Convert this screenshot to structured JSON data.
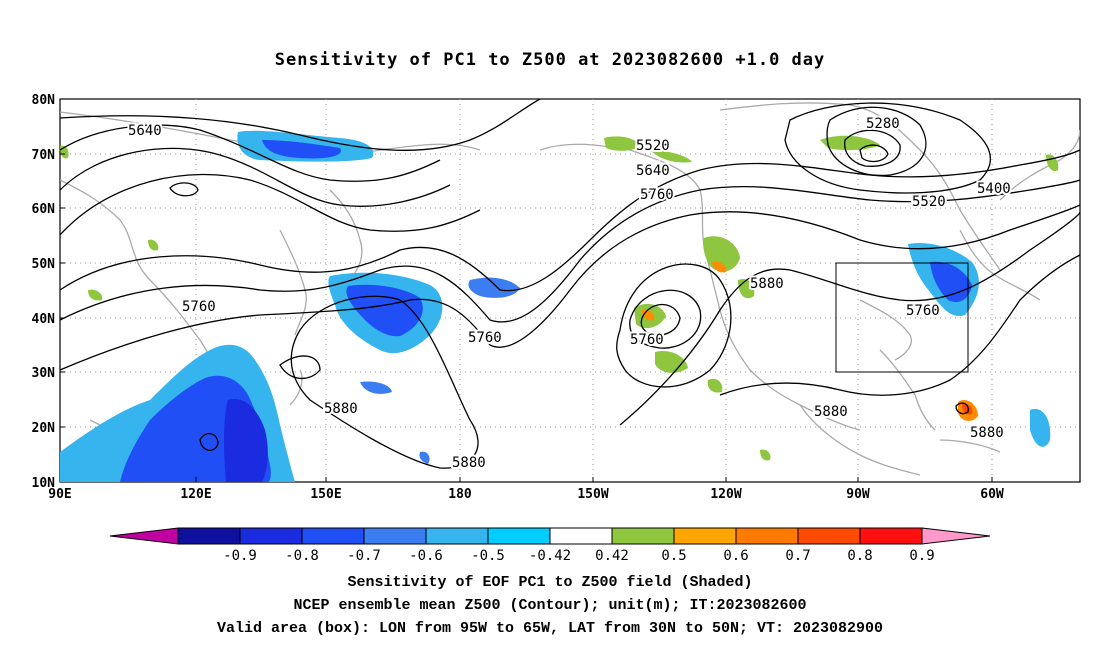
{
  "title": "Sensitivity of PC1 to Z500 at 2023082600 +1.0 day",
  "lat_labels": [
    "80N",
    "70N",
    "60N",
    "50N",
    "40N",
    "30N",
    "20N",
    "10N"
  ],
  "lon_labels": [
    "90E",
    "120E",
    "150E",
    "180",
    "150W",
    "120W",
    "90W",
    "60W"
  ],
  "contour_labels": [
    "5640",
    "5520",
    "5640",
    "5760",
    "5280",
    "5400",
    "5520",
    "5880",
    "5760",
    "5760",
    "5760",
    "5760",
    "5880",
    "5880",
    "5880",
    "5880"
  ],
  "colorbar": {
    "labels": [
      "-0.9",
      "-0.8",
      "-0.7",
      "-0.6",
      "-0.5",
      "-0.42",
      "0.42",
      "0.5",
      "0.6",
      "0.7",
      "0.8",
      "0.9"
    ],
    "colors": [
      "#c000a0",
      "#1010a0",
      "#1a2be0",
      "#1f4ff5",
      "#3c7ef2",
      "#36b4ee",
      "#00ccff",
      "#ffffff",
      "#8ec63f",
      "#ffa500",
      "#ff7a00",
      "#ff4a00",
      "#ff1010",
      "#ff99cc"
    ]
  },
  "captions": {
    "line1": "Sensitivity of EOF PC1 to Z500 field (Shaded)",
    "line2": "NCEP ensemble mean Z500 (Contour); unit(m); IT:2023082600",
    "line3": "Valid area (box): LON from 95W to 65W, LAT from 30N to 50N; VT: 2023082900"
  },
  "valid_area": {
    "lon": [
      "95W",
      "65W"
    ],
    "lat": [
      "30N",
      "50N"
    ]
  },
  "shading_colors": {
    "negative": "#2f6ff0",
    "strong_negative": "#1f3de0",
    "light_negative": "#3fb8f0",
    "positive": "#8ec63f",
    "orange": "#ff8c00"
  }
}
